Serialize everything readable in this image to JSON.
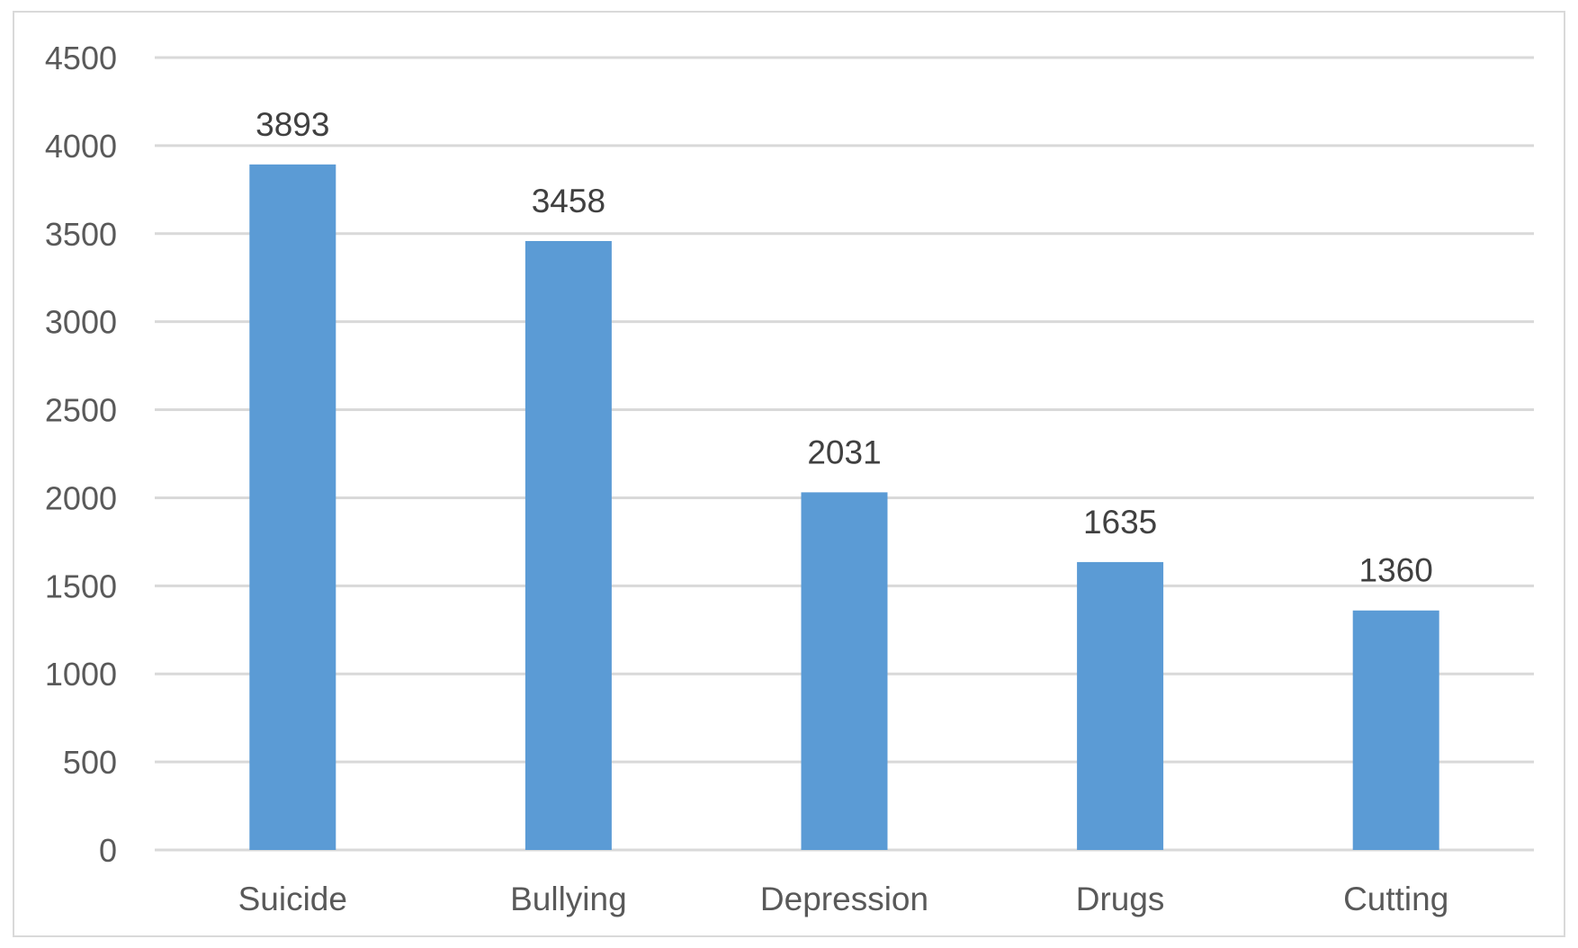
{
  "chart_data": {
    "type": "bar",
    "title": "",
    "xlabel": "",
    "ylabel": "",
    "categories": [
      "Suicide",
      "Bullying",
      "Depression",
      "Drugs",
      "Cutting"
    ],
    "values": [
      3893,
      3458,
      2031,
      1635,
      1360
    ],
    "data_labels": [
      "3893",
      "3458",
      "2031",
      "1635",
      "1360"
    ],
    "ylim": [
      0,
      4500
    ],
    "y_ticks": [
      0,
      500,
      1000,
      1500,
      2000,
      2500,
      3000,
      3500,
      4000,
      4500
    ],
    "y_tick_labels": [
      "0",
      "500",
      "1000",
      "1500",
      "2000",
      "2500",
      "3000",
      "3500",
      "4000",
      "4500"
    ],
    "grid": true,
    "legend": "none",
    "bar_color": "#5b9bd5",
    "grid_color": "#d9d9d9"
  }
}
